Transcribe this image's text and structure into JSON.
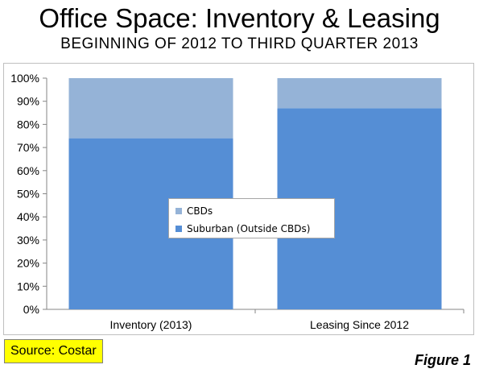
{
  "title": "Office Space: Inventory & Leasing",
  "subtitle": "BEGINNING OF 2012 TO THIRD QUARTER 2013",
  "source_label": "Source: Costar",
  "figure_label": "Figure 1",
  "chart_data": {
    "type": "bar",
    "stacked": true,
    "percent": true,
    "categories": [
      "Inventory (2013)",
      "Leasing Since 2012"
    ],
    "series": [
      {
        "name": "Suburban (Outside CBDs)",
        "values": [
          74,
          87
        ],
        "color": "#558ed5"
      },
      {
        "name": "CBDs",
        "values": [
          26,
          13
        ],
        "color": "#95b3d7"
      }
    ],
    "ylim": [
      0,
      100
    ],
    "yticks": [
      "0%",
      "10%",
      "20%",
      "30%",
      "40%",
      "50%",
      "60%",
      "70%",
      "80%",
      "90%",
      "100%"
    ],
    "grid": false,
    "legend_position": "center"
  },
  "legend": {
    "items": [
      {
        "label": "CBDs",
        "color": "#95b3d7"
      },
      {
        "label": "Suburban (Outside CBDs)",
        "color": "#558ed5"
      }
    ]
  }
}
